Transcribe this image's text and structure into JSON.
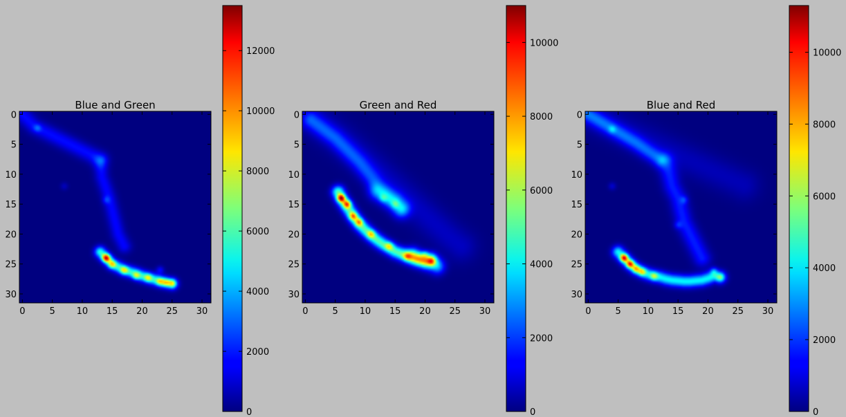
{
  "figure": {
    "background": "#bfbfbf",
    "colormap": "jet"
  },
  "chart_data": [
    {
      "type": "heatmap",
      "title": "Blue and Green",
      "x_ticks": [
        0,
        5,
        10,
        15,
        20,
        25,
        30
      ],
      "y_ticks": [
        0,
        5,
        10,
        15,
        20,
        25,
        30
      ],
      "xlim": [
        -0.5,
        31.5
      ],
      "ylim": [
        31.5,
        -0.5
      ],
      "colorbar": {
        "min": 0,
        "max": 13500,
        "ticks": [
          0,
          2000,
          4000,
          6000,
          8000,
          10000,
          12000
        ]
      },
      "features": [
        {
          "x": [
            0,
            1,
            2,
            3,
            5,
            7,
            9,
            11,
            13
          ],
          "y": [
            0,
            1,
            2,
            2.5,
            3.5,
            4.5,
            5.5,
            6.5,
            7.5
          ],
          "value": 1800,
          "width": 0.9
        },
        {
          "x": [
            13,
            13.3,
            14,
            14.5,
            15,
            15.5,
            16,
            17
          ],
          "y": [
            8,
            10.5,
            12.5,
            14,
            16,
            18,
            20,
            22
          ],
          "value": 1700,
          "width": 0.8
        },
        {
          "x": [
            13,
            14,
            15,
            16,
            17,
            18,
            19,
            20,
            21,
            22,
            23,
            24,
            25
          ],
          "y": [
            23,
            24,
            25,
            25.5,
            26,
            26.3,
            26.6,
            27,
            27.3,
            27.6,
            27.9,
            28.1,
            28.3
          ],
          "value": 5500,
          "width": 0.65
        }
      ],
      "peaks": [
        {
          "x": 14,
          "y": 24,
          "value": 13500
        },
        {
          "x": 15,
          "y": 25,
          "value": 7000
        },
        {
          "x": 17,
          "y": 26,
          "value": 6500
        },
        {
          "x": 19,
          "y": 27,
          "value": 6000
        },
        {
          "x": 21,
          "y": 27.3,
          "value": 5800
        },
        {
          "x": 23,
          "y": 27.9,
          "value": 6500
        },
        {
          "x": 24,
          "y": 28.1,
          "value": 6200
        },
        {
          "x": 25,
          "y": 28.2,
          "value": 6000
        },
        {
          "x": 2.5,
          "y": 2.3,
          "value": 2600
        },
        {
          "x": 7,
          "y": 12,
          "value": 1400
        },
        {
          "x": 14,
          "y": 14.3,
          "value": 2400
        },
        {
          "x": 23,
          "y": 26,
          "value": 3000
        }
      ]
    },
    {
      "type": "heatmap",
      "title": "Green and Red",
      "x_ticks": [
        0,
        5,
        10,
        15,
        20,
        25,
        30
      ],
      "y_ticks": [
        0,
        5,
        10,
        15,
        20,
        25,
        30
      ],
      "xlim": [
        -0.5,
        31.5
      ],
      "ylim": [
        31.5,
        -0.5
      ],
      "colorbar": {
        "min": 0,
        "max": 11000,
        "ticks": [
          0,
          2000,
          4000,
          6000,
          8000,
          10000
        ]
      },
      "features": [
        {
          "x": [
            0,
            2,
            4,
            6,
            8,
            10,
            12,
            14,
            16,
            18,
            20,
            22,
            24,
            26
          ],
          "y": [
            0,
            1.3,
            2.8,
            4.3,
            6,
            7.8,
            9.6,
            11.4,
            13.2,
            15,
            16.8,
            18.6,
            20.4,
            22
          ],
          "value": 700,
          "width": 1.8
        },
        {
          "x": [
            1,
            3,
            5,
            7,
            9,
            11,
            12,
            13,
            14,
            15,
            16
          ],
          "y": [
            1,
            2.5,
            4,
            6,
            8,
            10.5,
            12,
            13,
            14,
            15,
            16
          ],
          "value": 1800,
          "width": 1.0
        },
        {
          "x": [
            5.5,
            6,
            7,
            8,
            9,
            10,
            11,
            12,
            13,
            14,
            15,
            16,
            17,
            18,
            19,
            20,
            21
          ],
          "y": [
            13,
            14,
            15.5,
            17,
            18.3,
            19.3,
            20.2,
            21,
            21.7,
            22.3,
            22.9,
            23.3,
            23.7,
            24,
            24.2,
            24.4,
            24.3
          ],
          "value": 5000,
          "width": 0.75
        },
        {
          "x": [
            18,
            19,
            20,
            21,
            22
          ],
          "y": [
            23.5,
            24.2,
            24.6,
            25,
            25.4
          ],
          "value": 3200,
          "width": 0.9
        },
        {
          "x": [
            12,
            13,
            14,
            15,
            16
          ],
          "y": [
            13,
            13.5,
            14,
            14.5,
            15.5
          ],
          "value": 2000,
          "width": 1.0
        }
      ],
      "peaks": [
        {
          "x": 6,
          "y": 14,
          "value": 11000
        },
        {
          "x": 7,
          "y": 15,
          "value": 8500
        },
        {
          "x": 8,
          "y": 17,
          "value": 7000
        },
        {
          "x": 9,
          "y": 18,
          "value": 6500
        },
        {
          "x": 11,
          "y": 20,
          "value": 5000
        },
        {
          "x": 14,
          "y": 22,
          "value": 4500
        },
        {
          "x": 17,
          "y": 23.7,
          "value": 4300
        },
        {
          "x": 20,
          "y": 23.4,
          "value": 3500
        },
        {
          "x": 21,
          "y": 24.6,
          "value": 3800
        },
        {
          "x": 13,
          "y": 14,
          "value": 2500
        },
        {
          "x": 15,
          "y": 15,
          "value": 2400
        }
      ]
    },
    {
      "type": "heatmap",
      "title": "Blue and Red",
      "x_ticks": [
        0,
        5,
        10,
        15,
        20,
        25,
        30
      ],
      "y_ticks": [
        0,
        5,
        10,
        15,
        20,
        25,
        30
      ],
      "xlim": [
        -0.5,
        31.5
      ],
      "ylim": [
        31.5,
        -0.5
      ],
      "colorbar": {
        "min": 0,
        "max": 11300,
        "ticks": [
          0,
          2000,
          4000,
          6000,
          8000,
          10000
        ]
      },
      "features": [
        {
          "x": [
            0,
            2,
            4,
            6,
            8,
            10,
            12,
            14,
            16,
            18,
            20,
            22,
            24,
            26
          ],
          "y": [
            0,
            1,
            1.9,
            2.8,
            3.7,
            4.6,
            5.5,
            6.4,
            7.3,
            8.2,
            9.1,
            10,
            10.9,
            11.8
          ],
          "value": 600,
          "width": 1.8
        },
        {
          "x": [
            0,
            2,
            4,
            6,
            8,
            10,
            12
          ],
          "y": [
            0,
            1.2,
            2.4,
            3.6,
            4.8,
            6.2,
            7.5
          ],
          "value": 2200,
          "width": 0.9
        },
        {
          "x": [
            13,
            13.5,
            14,
            15,
            15.5,
            16,
            17,
            18,
            19
          ],
          "y": [
            8,
            10,
            12,
            14,
            16,
            18,
            20,
            22,
            24
          ],
          "value": 1700,
          "width": 1.0
        },
        {
          "x": [
            5,
            6,
            7,
            8,
            9,
            10,
            11,
            12,
            13,
            14,
            15,
            16,
            17,
            18,
            19,
            20,
            21,
            22
          ],
          "y": [
            23,
            24,
            25,
            25.8,
            26.3,
            26.7,
            27,
            27.2,
            27.5,
            27.7,
            27.8,
            27.9,
            27.9,
            27.8,
            27.7,
            27.4,
            27,
            27.2
          ],
          "value": 4200,
          "width": 0.7
        }
      ],
      "peaks": [
        {
          "x": 6,
          "y": 24,
          "value": 11300
        },
        {
          "x": 7,
          "y": 25,
          "value": 10500
        },
        {
          "x": 8,
          "y": 25.8,
          "value": 7000
        },
        {
          "x": 9,
          "y": 26.3,
          "value": 6000
        },
        {
          "x": 11,
          "y": 27,
          "value": 4500
        },
        {
          "x": 4,
          "y": 2.5,
          "value": 2500
        },
        {
          "x": 4,
          "y": 12,
          "value": 1500
        },
        {
          "x": 16,
          "y": 14.3,
          "value": 2200
        },
        {
          "x": 15,
          "y": 18.5,
          "value": 1900
        },
        {
          "x": 21,
          "y": 26.2,
          "value": 3000
        },
        {
          "x": 22,
          "y": 27.2,
          "value": 3000
        }
      ]
    }
  ]
}
